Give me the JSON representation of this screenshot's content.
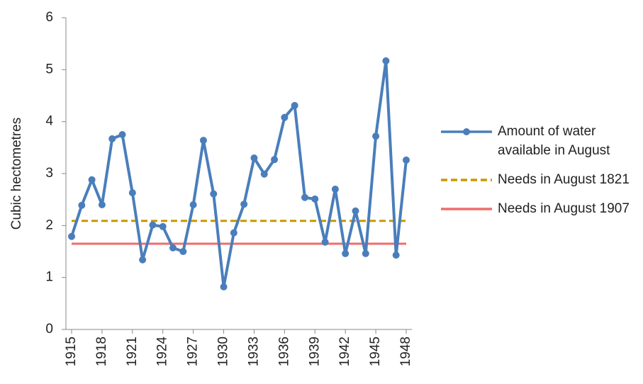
{
  "chart_data": {
    "type": "line",
    "y_label": "Cubic hectometres",
    "x": [
      1915,
      1916,
      1917,
      1918,
      1919,
      1920,
      1921,
      1922,
      1923,
      1924,
      1925,
      1926,
      1927,
      1928,
      1929,
      1930,
      1931,
      1932,
      1933,
      1934,
      1935,
      1936,
      1937,
      1938,
      1939,
      1940,
      1941,
      1942,
      1943,
      1944,
      1945,
      1946,
      1947,
      1948
    ],
    "series": [
      {
        "name": "Amount of water available in August",
        "color": "#4a7ebb",
        "values": [
          1.79,
          2.39,
          2.88,
          2.4,
          3.67,
          3.75,
          2.63,
          1.34,
          2.01,
          1.98,
          1.57,
          1.5,
          2.4,
          3.64,
          2.61,
          0.82,
          1.86,
          2.41,
          3.3,
          2.99,
          3.27,
          4.08,
          4.31,
          2.54,
          2.51,
          1.68,
          2.7,
          1.46,
          2.28,
          1.46,
          3.72,
          5.17,
          1.43,
          3.26
        ]
      }
    ],
    "reference_lines": [
      {
        "name": "Needs in August 1821",
        "color": "#c89800",
        "value": 2.09,
        "style": "dashed"
      },
      {
        "name": "Needs in August 1907",
        "color": "#f26b6b",
        "value": 1.65,
        "style": "solid"
      }
    ],
    "xlim": [
      1915,
      1948
    ],
    "xticks": [
      1915,
      1918,
      1921,
      1924,
      1927,
      1930,
      1933,
      1936,
      1939,
      1942,
      1945,
      1948
    ],
    "ylim": [
      0,
      6
    ],
    "yticks": [
      0,
      1,
      2,
      3,
      4,
      5,
      6
    ],
    "legend": "right"
  }
}
